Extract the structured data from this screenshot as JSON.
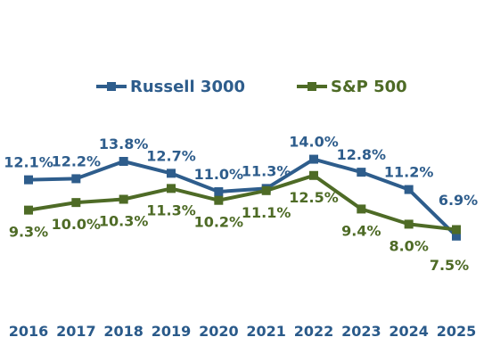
{
  "chart_data": {
    "type": "line",
    "title": "",
    "xlabel": "",
    "ylabel": "",
    "categories": [
      "2016",
      "2017",
      "2018",
      "2019",
      "2020",
      "2021",
      "2022",
      "2023",
      "2024",
      "2025"
    ],
    "series": [
      {
        "name": "Russell 3000",
        "color": "#2e5d8c",
        "values": [
          12.1,
          12.2,
          13.8,
          12.7,
          11.0,
          11.3,
          14.0,
          12.8,
          11.2,
          6.9
        ],
        "labels": [
          "12.1%",
          "12.2%",
          "13.8%",
          "12.7%",
          "11.0%",
          "11.3%",
          "14.0%",
          "12.8%",
          "11.2%",
          "6.9%"
        ]
      },
      {
        "name": "S&P 500",
        "color": "#4e6b26",
        "values": [
          9.3,
          10.0,
          10.3,
          11.3,
          10.2,
          11.1,
          12.5,
          9.4,
          8.0,
          7.5
        ],
        "labels": [
          "9.3%",
          "10.0%",
          "10.3%",
          "11.3%",
          "10.2%",
          "11.1%",
          "12.5%",
          "9.4%",
          "8.0%",
          "7.5%"
        ]
      }
    ],
    "ylim": [
      4,
      18
    ],
    "grid": false,
    "legend_position": "top-center"
  }
}
